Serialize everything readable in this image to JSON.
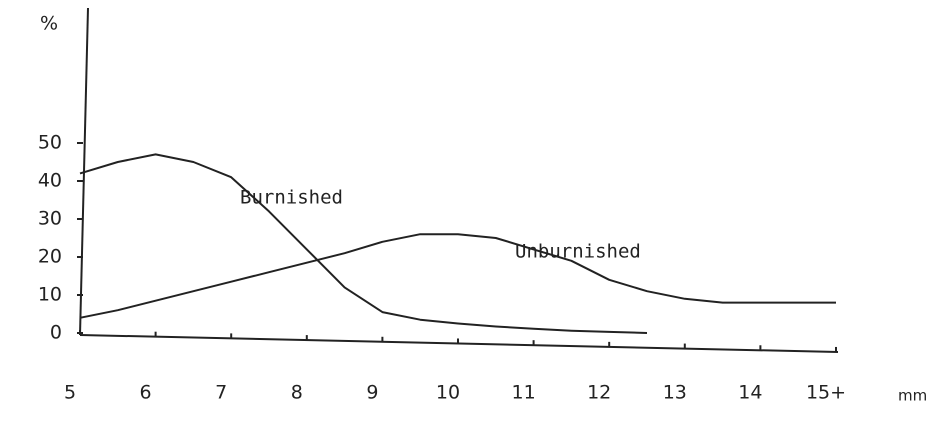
{
  "chart_data": {
    "type": "line",
    "y_label": "%",
    "x_label": "mm",
    "x": [
      5,
      5.5,
      6,
      6.5,
      7,
      7.5,
      8,
      8.5,
      9,
      9.5,
      10,
      10.5,
      11,
      11.5,
      12,
      12.5,
      13,
      13.5,
      14,
      14.5,
      15
    ],
    "series": [
      {
        "name": "Burnished",
        "color": "#222222",
        "values": [
          42,
          45,
          47,
          45,
          41,
          32,
          22,
          12,
          5.5,
          3.5,
          2.5,
          1.7,
          1.1,
          0.6,
          0.3,
          0,
          null,
          null,
          null,
          null,
          null
        ]
      },
      {
        "name": "Unburnished",
        "color": "#222222",
        "values": [
          4,
          6,
          8.5,
          11,
          13.5,
          16,
          18.5,
          21,
          24,
          26,
          26,
          25,
          22,
          19,
          14,
          11,
          9,
          8,
          8,
          8,
          8
        ]
      }
    ],
    "xlim": [
      5,
      15
    ],
    "xticks": [
      5,
      6,
      7,
      8,
      9,
      10,
      11,
      12,
      13,
      14,
      {
        "value": 15,
        "label": "15+"
      }
    ],
    "ylim": [
      0,
      50
    ],
    "yticks": [
      0,
      10,
      20,
      30,
      40,
      50
    ],
    "grid": false
  }
}
